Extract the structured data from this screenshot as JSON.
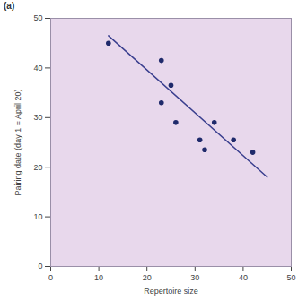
{
  "chart_data": {
    "type": "scatter",
    "title": "(a)",
    "x_label": "Repertoire size",
    "y_label": "Pairing date (day 1 = April 20)",
    "xlim": [
      0,
      50
    ],
    "xticks": [
      0,
      10,
      20,
      30,
      40,
      50
    ],
    "ylim": [
      0,
      50
    ],
    "yticks": [
      0,
      10,
      20,
      30,
      40,
      50
    ],
    "grid": false,
    "series": [
      {
        "type": "scatter",
        "color": "#1f2a6b",
        "marker": "circle",
        "x": [
          12,
          23,
          23,
          25,
          26,
          31,
          32,
          34,
          38,
          42
        ],
        "values": [
          45,
          41.5,
          33,
          36.5,
          29,
          25.5,
          23.5,
          29,
          25.5,
          23
        ]
      },
      {
        "type": "line",
        "color": "#3a3f8f",
        "line_style": "solid",
        "x": [
          12,
          45
        ],
        "values": [
          46.5,
          18
        ]
      }
    ]
  }
}
